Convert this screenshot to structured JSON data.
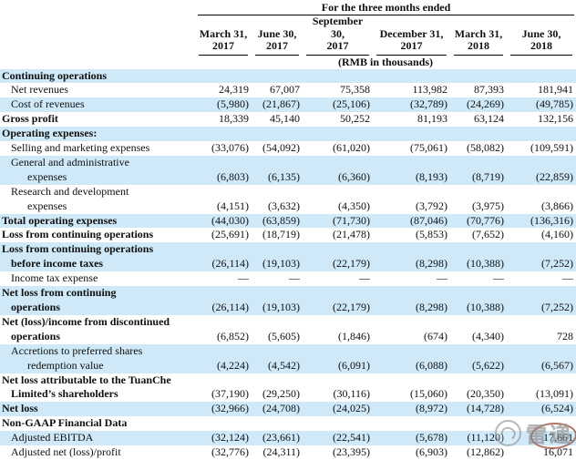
{
  "table": {
    "header": {
      "period_title": "For the three months ended",
      "unit_note": "(RMB in thousands)",
      "columns": [
        "March 31,\n2017",
        "June 30,\n2017",
        "September 30,\n2017",
        "December 31,\n2017",
        "March 31,\n2018",
        "June 30,\n2018"
      ]
    },
    "rows": [
      {
        "label": "Continuing operations",
        "bold": true,
        "indent": 0,
        "shaded": true,
        "values": [
          "",
          "",
          "",
          "",
          "",
          ""
        ]
      },
      {
        "label": "Net revenues",
        "bold": false,
        "indent": 1,
        "shaded": false,
        "values": [
          "24,319",
          "67,007",
          "75,358",
          "113,982",
          "87,393",
          "181,941"
        ]
      },
      {
        "label": "Cost of revenues",
        "bold": false,
        "indent": 1,
        "shaded": true,
        "values": [
          "(5,980)",
          "(21,867)",
          "(25,106)",
          "(32,789)",
          "(24,269)",
          "(49,785)"
        ]
      },
      {
        "label": "Gross profit",
        "bold": true,
        "indent": 0,
        "shaded": false,
        "values": [
          "18,339",
          "45,140",
          "50,252",
          "81,193",
          "63,124",
          "132,156"
        ]
      },
      {
        "label": "Operating expenses:",
        "bold": true,
        "indent": 0,
        "shaded": true,
        "values": [
          "",
          "",
          "",
          "",
          "",
          ""
        ]
      },
      {
        "label": "Selling and marketing expenses",
        "bold": false,
        "indent": 1,
        "shaded": false,
        "values": [
          "(33,076)",
          "(54,092)",
          "(61,020)",
          "(75,061)",
          "(58,082)",
          "(109,591)"
        ]
      },
      {
        "label": "General and administrative\nexpenses",
        "bold": false,
        "indent": 1,
        "shaded": true,
        "values": [
          "(6,803)",
          "(6,135)",
          "(6,360)",
          "(8,193)",
          "(8,719)",
          "(22,859)"
        ]
      },
      {
        "label": "Research and development\nexpenses",
        "bold": false,
        "indent": 1,
        "shaded": false,
        "values": [
          "(4,151)",
          "(3,632)",
          "(4,350)",
          "(3,792)",
          "(3,975)",
          "(3,866)"
        ]
      },
      {
        "label": "Total operating expenses",
        "bold": true,
        "indent": 0,
        "shaded": true,
        "values": [
          "(44,030)",
          "(63,859)",
          "(71,730)",
          "(87,046)",
          "(70,776)",
          "(136,316)"
        ]
      },
      {
        "label": "Loss from continuing operations",
        "bold": true,
        "indent": 0,
        "shaded": false,
        "values": [
          "(25,691)",
          "(18,719)",
          "(21,478)",
          "(5,853)",
          "(7,652)",
          "(4,160)"
        ]
      },
      {
        "label": "Loss from continuing operations\nbefore income taxes",
        "bold": true,
        "indent": 0,
        "shaded": true,
        "values": [
          "(26,114)",
          "(19,103)",
          "(22,179)",
          "(8,298)",
          "(10,388)",
          "(7,252)"
        ]
      },
      {
        "label": "Income tax expense",
        "bold": false,
        "indent": 1,
        "shaded": false,
        "values": [
          "—",
          "—",
          "—",
          "—",
          "—",
          "—"
        ]
      },
      {
        "label": "Net loss from continuing\noperations",
        "bold": true,
        "indent": 0,
        "shaded": true,
        "values": [
          "(26,114)",
          "(19,103)",
          "(22,179)",
          "(8,298)",
          "(10,388)",
          "(7,252)"
        ]
      },
      {
        "label": "Net (loss)/income from discontinued\noperations",
        "bold": true,
        "indent": 0,
        "shaded": false,
        "values": [
          "(6,852)",
          "(5,605)",
          "(1,846)",
          "(674)",
          "(4,340)",
          "728"
        ]
      },
      {
        "label": "Accretions to preferred shares\nredemption value",
        "bold": false,
        "indent": 1,
        "shaded": true,
        "values": [
          "(4,224)",
          "(4,542)",
          "(6,091)",
          "(6,088)",
          "(5,622)",
          "(6,567)"
        ]
      },
      {
        "label": "Net loss attributable to the TuanChe\nLimited’s shareholders",
        "bold": true,
        "indent": 0,
        "shaded": false,
        "values": [
          "(37,190)",
          "(29,250)",
          "(30,116)",
          "(15,060)",
          "(20,350)",
          "(13,091)"
        ]
      },
      {
        "label": "Net loss",
        "bold": true,
        "indent": 0,
        "shaded": true,
        "values": [
          "(32,966)",
          "(24,708)",
          "(24,025)",
          "(8,972)",
          "(14,728)",
          "(6,524)"
        ]
      },
      {
        "label": "Non-GAAP Financial Data",
        "bold": true,
        "indent": 0,
        "shaded": false,
        "values": [
          "",
          "",
          "",
          "",
          "",
          ""
        ]
      },
      {
        "label": "Adjusted EBITDA",
        "bold": false,
        "indent": 1,
        "shaded": true,
        "circled_col": 5,
        "values": [
          "(32,124)",
          "(23,661)",
          "(22,541)",
          "(5,678)",
          "(11,120)",
          "17,661"
        ]
      },
      {
        "label": "Adjusted net (loss)/profit",
        "bold": false,
        "indent": 1,
        "shaded": false,
        "values": [
          "(32,776)",
          "(24,311)",
          "(23,395)",
          "(6,903)",
          "(12,862)",
          "16,071"
        ]
      }
    ]
  },
  "annotations": {
    "circled_value": {
      "row": "Adjusted EBITDA",
      "column": "June 30, 2018",
      "value": "17,661"
    },
    "circle_color": "#9e4637",
    "watermark": {
      "text": "雷递",
      "color": "#868686"
    }
  }
}
